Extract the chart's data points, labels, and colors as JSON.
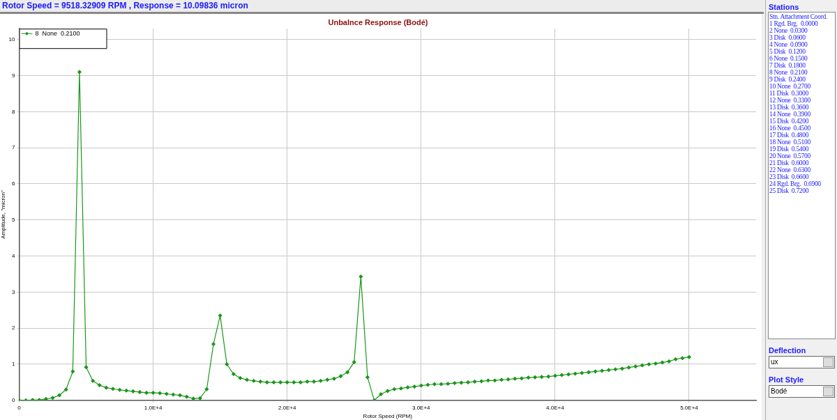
{
  "chart_data": [
    {
      "type": "line",
      "title": "Unbalnce Response (Bodé)",
      "xlabel": "Rotor Speed (RPM)",
      "ylabel": "Amplitude, \"micron\"",
      "annotations": [
        "Rotor Speed = 9518.32909 RPM , Response = 10.09836 micron"
      ],
      "x": [
        0,
        500,
        1000,
        1500,
        2000,
        2500,
        3000,
        3500,
        4000,
        4500,
        5000,
        5500,
        6000,
        6500,
        7000,
        7500,
        8000,
        8500,
        9000,
        9500,
        10000,
        10500,
        11000,
        11500,
        12000,
        12500,
        13000,
        13500,
        14000,
        14500,
        15000,
        15500,
        16000,
        16500,
        17000,
        17500,
        18000,
        18500,
        19000,
        19500,
        20000,
        20500,
        21000,
        21500,
        22000,
        22500,
        23000,
        23500,
        24000,
        24500,
        25000,
        25500,
        26000,
        26500,
        27000,
        27500,
        28000,
        28500,
        29000,
        29500,
        30000,
        30500,
        31000,
        31500,
        32000,
        32500,
        33000,
        33500,
        34000,
        34500,
        35000,
        35500,
        36000,
        36500,
        37000,
        37500,
        38000,
        38500,
        39000,
        39500,
        40000,
        40500,
        41000,
        41500,
        42000,
        42500,
        43000,
        43500,
        44000,
        44500,
        45000,
        45500,
        46000,
        46500,
        47000,
        47500,
        48000,
        48500,
        49000,
        49500,
        50000
      ],
      "series": [
        {
          "name": "8  None  0.2100",
          "color": "#1a961a",
          "values": [
            0,
            0,
            0.01,
            0.01,
            0.04,
            0.07,
            0.14,
            0.3,
            0.8,
            9.1,
            0.92,
            0.54,
            0.42,
            0.35,
            0.32,
            0.29,
            0.27,
            0.25,
            0.23,
            0.21,
            0.21,
            0.2,
            0.18,
            0.16,
            0.14,
            0.1,
            0.05,
            0.06,
            0.31,
            1.56,
            2.35,
            1.0,
            0.73,
            0.62,
            0.57,
            0.54,
            0.52,
            0.5,
            0.5,
            0.5,
            0.5,
            0.5,
            0.5,
            0.52,
            0.52,
            0.54,
            0.57,
            0.6,
            0.67,
            0.78,
            1.06,
            3.43,
            0.64,
            0,
            0.17,
            0.26,
            0.31,
            0.33,
            0.36,
            0.38,
            0.41,
            0.43,
            0.45,
            0.45,
            0.46,
            0.48,
            0.49,
            0.5,
            0.52,
            0.53,
            0.55,
            0.55,
            0.57,
            0.58,
            0.6,
            0.61,
            0.63,
            0.64,
            0.65,
            0.66,
            0.68,
            0.7,
            0.72,
            0.74,
            0.76,
            0.78,
            0.8,
            0.82,
            0.84,
            0.86,
            0.88,
            0.91,
            0.94,
            0.97,
            1.0,
            1.02,
            1.05,
            1.08,
            1.14,
            1.17,
            1.2
          ]
        }
      ],
      "xlim": [
        0,
        55000
      ],
      "xticks": [
        0,
        {
          "value": 10000,
          "label": "1.0E+4"
        },
        {
          "value": 20000,
          "label": "2.0E+4"
        },
        {
          "value": 30000,
          "label": "3.0E+4"
        },
        {
          "value": 40000,
          "label": "4.0E+4"
        },
        {
          "value": 50000,
          "label": "5.0E+4"
        }
      ],
      "ylim": [
        0,
        10.3
      ],
      "yticks": [
        0,
        1,
        2,
        3,
        4,
        5,
        6,
        7,
        8,
        9,
        10
      ],
      "grid": true,
      "legend": "top left",
      "marker": "diamond",
      "line_style": "solid"
    },
    {
      "type": "other",
      "annotations": [
        "Stations",
        "Stn. Attachment Coord.",
        "1 Rgd. Brg.  0.0000",
        "2 None  0.0300",
        "3 Disk  0.0600",
        "4 None  0.0900",
        "5 Disk  0.1200",
        "6 None  0.1500",
        "7 Disk  0.1800",
        "8 None  0.2100",
        "9 Disk  0.2400",
        "10 None  0.2700",
        "11 Disk  0.3000",
        "12 None  0.3300",
        "13 Disk  0.3600",
        "14 None  0.3900",
        "15 Disk  0.4200",
        "16 None  0.4500",
        "17 Disk  0.4800",
        "18 None  0.5100",
        "19 Disk  0.5400",
        "20 None  0.5700",
        "21 Disk  0.6000",
        "22 None  0.6300",
        "23 Disk  0.6600",
        "24 Rgd. Brg.  0.6900",
        "25 Disk  0.7200",
        "Deflection",
        "ux",
        "Plot Style",
        "Bodé"
      ]
    }
  ]
}
